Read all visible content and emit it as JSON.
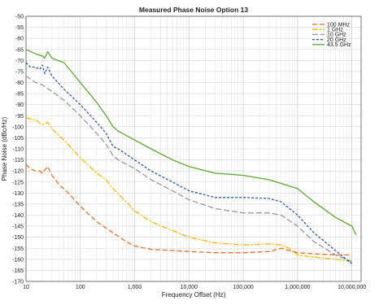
{
  "chart_data": {
    "type": "line",
    "title": "Measured Phase Noise Option 13",
    "xlabel": "Frequency Offset (Hz)",
    "ylabel": "Phase Noise (dBc/Hz)",
    "x_scale": "log",
    "xlim": [
      10,
      10000000
    ],
    "ylim": [
      -170,
      -50
    ],
    "grid": true,
    "legend_position": "top-right",
    "x_ticks": [
      "10",
      "100",
      "1,000",
      "10,000",
      "100,000",
      "1,000,000",
      "10,000,000"
    ],
    "y_ticks": [
      "-50",
      "-55",
      "-60",
      "-65",
      "-70",
      "-75",
      "-80",
      "-85",
      "-90",
      "-95",
      "-100",
      "-105",
      "-110",
      "-115",
      "-120",
      "-125",
      "-130",
      "-135",
      "-140",
      "-145",
      "-150",
      "-155",
      "-160",
      "-165",
      "-170"
    ],
    "series": [
      {
        "name": "100 MHz",
        "color": "#e8702a",
        "dash": "6,3",
        "points": [
          [
            10,
            -117
          ],
          [
            12,
            -119
          ],
          [
            15,
            -120
          ],
          [
            18,
            -120
          ],
          [
            20,
            -121
          ],
          [
            25,
            -118
          ],
          [
            30,
            -122
          ],
          [
            40,
            -126
          ],
          [
            60,
            -130
          ],
          [
            100,
            -136
          ],
          [
            200,
            -143
          ],
          [
            400,
            -148
          ],
          [
            700,
            -152
          ],
          [
            1000,
            -154
          ],
          [
            2000,
            -155.5
          ],
          [
            5000,
            -156
          ],
          [
            10000,
            -156.5
          ],
          [
            30000,
            -157
          ],
          [
            100000,
            -157
          ],
          [
            300000,
            -156.5
          ],
          [
            500000,
            -155
          ],
          [
            700000,
            -156
          ],
          [
            1000000,
            -157
          ],
          [
            2000000,
            -157.5
          ],
          [
            5000000,
            -158
          ],
          [
            10000000,
            -158
          ]
        ]
      },
      {
        "name": "1 GHz",
        "color": "#f5b800",
        "dash": "7,2,2,2",
        "points": [
          [
            10,
            -96
          ],
          [
            15,
            -97
          ],
          [
            20,
            -99
          ],
          [
            25,
            -98
          ],
          [
            30,
            -101
          ],
          [
            50,
            -106
          ],
          [
            100,
            -114
          ],
          [
            200,
            -121
          ],
          [
            300,
            -124
          ],
          [
            400,
            -128
          ],
          [
            700,
            -134
          ],
          [
            1000,
            -138
          ],
          [
            2000,
            -143
          ],
          [
            5000,
            -147
          ],
          [
            10000,
            -150
          ],
          [
            30000,
            -152.5
          ],
          [
            100000,
            -153.5
          ],
          [
            300000,
            -153
          ],
          [
            500000,
            -153.5
          ],
          [
            700000,
            -155
          ],
          [
            1000000,
            -158
          ],
          [
            2000000,
            -159
          ],
          [
            5000000,
            -160
          ],
          [
            10000000,
            -161
          ]
        ]
      },
      {
        "name": "10 GHz",
        "color": "#9a9a9a",
        "dash": "7,3",
        "points": [
          [
            10,
            -77
          ],
          [
            15,
            -80
          ],
          [
            20,
            -81
          ],
          [
            30,
            -84
          ],
          [
            50,
            -88
          ],
          [
            100,
            -95
          ],
          [
            200,
            -103
          ],
          [
            300,
            -108
          ],
          [
            400,
            -113
          ],
          [
            500,
            -115
          ],
          [
            1000,
            -119
          ],
          [
            2000,
            -124
          ],
          [
            5000,
            -129
          ],
          [
            10000,
            -133
          ],
          [
            30000,
            -137
          ],
          [
            100000,
            -139
          ],
          [
            300000,
            -139
          ],
          [
            500000,
            -140
          ],
          [
            1000000,
            -145
          ],
          [
            2000000,
            -152
          ],
          [
            5000000,
            -158
          ],
          [
            10000000,
            -161
          ]
        ]
      },
      {
        "name": "20 GHz",
        "color": "#2e5aa8",
        "dash": "3,2",
        "points": [
          [
            10,
            -71
          ],
          [
            12,
            -73
          ],
          [
            15,
            -73
          ],
          [
            18,
            -74
          ],
          [
            20,
            -72
          ],
          [
            22,
            -76
          ],
          [
            25,
            -73
          ],
          [
            30,
            -77
          ],
          [
            50,
            -83
          ],
          [
            100,
            -90
          ],
          [
            200,
            -98
          ],
          [
            300,
            -103
          ],
          [
            400,
            -109
          ],
          [
            500,
            -110
          ],
          [
            1000,
            -115
          ],
          [
            2000,
            -120
          ],
          [
            5000,
            -125
          ],
          [
            10000,
            -129
          ],
          [
            30000,
            -132
          ],
          [
            100000,
            -132
          ],
          [
            300000,
            -132.5
          ],
          [
            500000,
            -134
          ],
          [
            1000000,
            -140
          ],
          [
            2000000,
            -148
          ],
          [
            5000000,
            -156
          ],
          [
            10000000,
            -162
          ]
        ]
      },
      {
        "name": "43.5 GHz",
        "color": "#5aa832",
        "dash": "",
        "points": [
          [
            10,
            -65
          ],
          [
            15,
            -67
          ],
          [
            20,
            -68
          ],
          [
            22,
            -69
          ],
          [
            25,
            -66
          ],
          [
            30,
            -69
          ],
          [
            50,
            -71
          ],
          [
            100,
            -80
          ],
          [
            200,
            -89
          ],
          [
            300,
            -95
          ],
          [
            400,
            -100
          ],
          [
            500,
            -102
          ],
          [
            1000,
            -106
          ],
          [
            2000,
            -110
          ],
          [
            5000,
            -115
          ],
          [
            10000,
            -118
          ],
          [
            30000,
            -121
          ],
          [
            100000,
            -122
          ],
          [
            300000,
            -124
          ],
          [
            1000000,
            -128
          ],
          [
            2000000,
            -134
          ],
          [
            5000000,
            -141
          ],
          [
            10000000,
            -145
          ],
          [
            12000000,
            -149
          ]
        ]
      }
    ]
  }
}
